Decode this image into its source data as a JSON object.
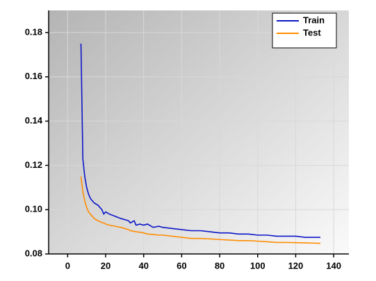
{
  "chart_data": {
    "type": "line",
    "x": [
      7,
      8,
      9,
      10,
      11,
      12,
      14,
      16,
      18,
      19,
      20,
      22,
      25,
      28,
      30,
      32,
      33,
      35,
      36,
      38,
      40,
      42,
      45,
      48,
      50,
      55,
      60,
      65,
      70,
      75,
      80,
      85,
      90,
      95,
      100,
      105,
      110,
      115,
      120,
      125,
      130,
      133
    ],
    "series": [
      {
        "name": "Train",
        "color": "#0a14c8",
        "values": [
          0.175,
          0.123,
          0.115,
          0.11,
          0.107,
          0.105,
          0.103,
          0.102,
          0.1,
          0.098,
          0.099,
          0.098,
          0.097,
          0.096,
          0.0955,
          0.095,
          0.094,
          0.095,
          0.093,
          0.0935,
          0.093,
          0.0935,
          0.092,
          0.0925,
          0.092,
          0.0915,
          0.091,
          0.0905,
          0.0905,
          0.09,
          0.0895,
          0.0895,
          0.089,
          0.089,
          0.0885,
          0.0885,
          0.088,
          0.088,
          0.088,
          0.0875,
          0.0875,
          0.0875
        ]
      },
      {
        "name": "Test",
        "color": "#ff8c00",
        "values": [
          0.115,
          0.108,
          0.104,
          0.101,
          0.099,
          0.098,
          0.096,
          0.095,
          0.0942,
          0.094,
          0.0935,
          0.093,
          0.0925,
          0.092,
          0.0915,
          0.091,
          0.0905,
          0.0902,
          0.09,
          0.0898,
          0.0895,
          0.089,
          0.0888,
          0.0885,
          0.0885,
          0.088,
          0.0875,
          0.087,
          0.087,
          0.0868,
          0.0865,
          0.0863,
          0.086,
          0.086,
          0.0858,
          0.0855,
          0.0852,
          0.0852,
          0.0851,
          0.085,
          0.0849,
          0.0848
        ]
      }
    ],
    "xlim": [
      -10,
      148
    ],
    "xticks": [
      0,
      20,
      40,
      60,
      80,
      100,
      120,
      140
    ],
    "ylim": [
      0.08,
      0.19
    ],
    "yticks": [
      0.08,
      {
        "value": 0.1,
        "label": "0.10"
      },
      0.12,
      0.14,
      0.16,
      0.18
    ],
    "grid": true,
    "legend": "upper right"
  }
}
